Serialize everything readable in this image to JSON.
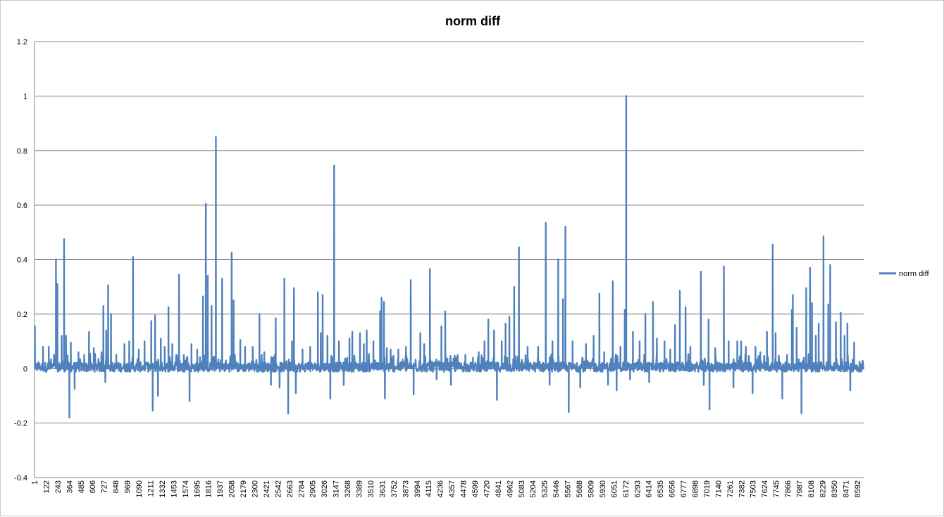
{
  "chart_data": {
    "type": "line",
    "title": "norm diff",
    "xlabel": "",
    "ylabel": "",
    "ylim": [
      -0.4,
      1.2
    ],
    "y_ticks": [
      "1.2",
      "1",
      "0.8",
      "0.6",
      "0.4",
      "0.2",
      "0",
      "-0.2",
      "-0.4"
    ],
    "x_range": [
      1,
      8660
    ],
    "x_ticks": [
      "1",
      "122",
      "243",
      "364",
      "485",
      "606",
      "727",
      "848",
      "969",
      "1090",
      "1211",
      "1332",
      "1453",
      "1574",
      "1695",
      "1816",
      "1937",
      "2058",
      "2179",
      "2300",
      "2421",
      "2542",
      "2663",
      "2784",
      "2905",
      "3026",
      "3147",
      "3268",
      "3389",
      "3510",
      "3631",
      "3752",
      "3873",
      "3994",
      "4115",
      "4236",
      "4357",
      "4478",
      "4599",
      "4720",
      "4841",
      "4962",
      "5083",
      "5204",
      "5325",
      "5446",
      "5567",
      "5688",
      "5809",
      "5930",
      "6051",
      "6172",
      "6293",
      "6414",
      "6535",
      "6656",
      "6777",
      "6898",
      "7019",
      "7140",
      "7261",
      "7382",
      "7503",
      "7624",
      "7745",
      "7866",
      "7987",
      "8108",
      "8229",
      "8350",
      "8471",
      "8592"
    ],
    "grid": true,
    "legend_position": "right",
    "series": [
      {
        "name": "norm diff",
        "color": "#4f81bd",
        "peaks": [
          [
            5,
            0.155
          ],
          [
            90,
            0.08
          ],
          [
            150,
            0.08
          ],
          [
            225,
            0.4
          ],
          [
            240,
            0.31
          ],
          [
            285,
            0.12
          ],
          [
            310,
            0.475
          ],
          [
            330,
            0.12
          ],
          [
            365,
            -0.18
          ],
          [
            380,
            0.095
          ],
          [
            420,
            -0.075
          ],
          [
            460,
            0.06
          ],
          [
            520,
            0.05
          ],
          [
            570,
            0.135
          ],
          [
            620,
            0.075
          ],
          [
            700,
            0.06
          ],
          [
            720,
            0.23
          ],
          [
            740,
            -0.05
          ],
          [
            750,
            0.14
          ],
          [
            770,
            0.305
          ],
          [
            800,
            0.2
          ],
          [
            855,
            0.05
          ],
          [
            940,
            0.09
          ],
          [
            990,
            0.1
          ],
          [
            1030,
            0.41
          ],
          [
            1090,
            0.07
          ],
          [
            1150,
            0.1
          ],
          [
            1220,
            0.175
          ],
          [
            1235,
            -0.155
          ],
          [
            1260,
            0.195
          ],
          [
            1290,
            -0.1
          ],
          [
            1320,
            0.11
          ],
          [
            1360,
            0.08
          ],
          [
            1400,
            0.225
          ],
          [
            1440,
            0.09
          ],
          [
            1510,
            0.345
          ],
          [
            1560,
            0.05
          ],
          [
            1620,
            -0.12
          ],
          [
            1640,
            0.09
          ],
          [
            1700,
            0.07
          ],
          [
            1760,
            0.265
          ],
          [
            1790,
            0.605
          ],
          [
            1810,
            0.34
          ],
          [
            1850,
            0.23
          ],
          [
            1895,
            0.85
          ],
          [
            1960,
            0.33
          ],
          [
            2000,
            0.03
          ],
          [
            2060,
            0.425
          ],
          [
            2080,
            0.25
          ],
          [
            2150,
            0.105
          ],
          [
            2200,
            0.08
          ],
          [
            2280,
            0.08
          ],
          [
            2350,
            0.2
          ],
          [
            2400,
            0.06
          ],
          [
            2470,
            -0.06
          ],
          [
            2520,
            0.185
          ],
          [
            2560,
            -0.07
          ],
          [
            2610,
            0.33
          ],
          [
            2650,
            -0.165
          ],
          [
            2690,
            0.1
          ],
          [
            2710,
            0.295
          ],
          [
            2730,
            -0.09
          ],
          [
            2800,
            0.07
          ],
          [
            2880,
            0.08
          ],
          [
            2960,
            0.28
          ],
          [
            2990,
            0.13
          ],
          [
            3010,
            0.27
          ],
          [
            3060,
            0.12
          ],
          [
            3090,
            -0.11
          ],
          [
            3130,
            0.745
          ],
          [
            3180,
            0.1
          ],
          [
            3230,
            -0.06
          ],
          [
            3290,
            0.11
          ],
          [
            3320,
            0.135
          ],
          [
            3400,
            0.13
          ],
          [
            3440,
            0.09
          ],
          [
            3470,
            0.14
          ],
          [
            3540,
            0.1
          ],
          [
            3610,
            0.21
          ],
          [
            3625,
            0.26
          ],
          [
            3650,
            0.245
          ],
          [
            3660,
            -0.11
          ],
          [
            3680,
            0.075
          ],
          [
            3720,
            0.07
          ],
          [
            3800,
            0.07
          ],
          [
            3880,
            0.08
          ],
          [
            3930,
            0.325
          ],
          [
            3960,
            -0.095
          ],
          [
            4030,
            0.13
          ],
          [
            4070,
            0.09
          ],
          [
            4130,
            0.365
          ],
          [
            4200,
            -0.04
          ],
          [
            4250,
            0.155
          ],
          [
            4290,
            0.21
          ],
          [
            4350,
            -0.06
          ],
          [
            4420,
            0.05
          ],
          [
            4500,
            0.05
          ],
          [
            4580,
            0.04
          ],
          [
            4640,
            0.06
          ],
          [
            4700,
            0.1
          ],
          [
            4740,
            0.18
          ],
          [
            4800,
            0.14
          ],
          [
            4830,
            -0.115
          ],
          [
            4880,
            0.1
          ],
          [
            4920,
            0.165
          ],
          [
            4960,
            0.19
          ],
          [
            5010,
            0.3
          ],
          [
            5060,
            0.445
          ],
          [
            5150,
            0.08
          ],
          [
            5260,
            0.08
          ],
          [
            5340,
            0.535
          ],
          [
            5380,
            -0.06
          ],
          [
            5410,
            0.1
          ],
          [
            5470,
            0.4
          ],
          [
            5520,
            0.255
          ],
          [
            5545,
            0.52
          ],
          [
            5580,
            -0.16
          ],
          [
            5620,
            0.1
          ],
          [
            5700,
            -0.07
          ],
          [
            5760,
            0.09
          ],
          [
            5840,
            0.12
          ],
          [
            5900,
            0.275
          ],
          [
            5950,
            0.06
          ],
          [
            5990,
            -0.06
          ],
          [
            6040,
            0.32
          ],
          [
            6080,
            -0.08
          ],
          [
            6120,
            0.08
          ],
          [
            6165,
            0.215
          ],
          [
            6180,
            1.0
          ],
          [
            6220,
            -0.04
          ],
          [
            6250,
            0.135
          ],
          [
            6320,
            0.1
          ],
          [
            6380,
            0.2
          ],
          [
            6420,
            -0.05
          ],
          [
            6460,
            0.245
          ],
          [
            6500,
            0.11
          ],
          [
            6580,
            0.1
          ],
          [
            6640,
            0.07
          ],
          [
            6690,
            0.16
          ],
          [
            6740,
            0.285
          ],
          [
            6800,
            0.225
          ],
          [
            6850,
            0.08
          ],
          [
            6960,
            0.355
          ],
          [
            6990,
            -0.06
          ],
          [
            7040,
            0.18
          ],
          [
            7050,
            -0.15
          ],
          [
            7110,
            0.075
          ],
          [
            7200,
            0.375
          ],
          [
            7250,
            0.1
          ],
          [
            7300,
            -0.07
          ],
          [
            7340,
            0.1
          ],
          [
            7380,
            0.1
          ],
          [
            7430,
            0.08
          ],
          [
            7500,
            -0.09
          ],
          [
            7530,
            0.08
          ],
          [
            7580,
            0.06
          ],
          [
            7650,
            0.135
          ],
          [
            7710,
            0.455
          ],
          [
            7740,
            0.13
          ],
          [
            7810,
            -0.11
          ],
          [
            7860,
            0.05
          ],
          [
            7910,
            0.215
          ],
          [
            7920,
            0.27
          ],
          [
            7960,
            0.15
          ],
          [
            8010,
            -0.165
          ],
          [
            8060,
            0.295
          ],
          [
            8100,
            0.37
          ],
          [
            8120,
            0.24
          ],
          [
            8160,
            0.12
          ],
          [
            8190,
            0.165
          ],
          [
            8240,
            0.485
          ],
          [
            8290,
            0.235
          ],
          [
            8310,
            0.38
          ],
          [
            8370,
            0.17
          ],
          [
            8420,
            0.205
          ],
          [
            8460,
            0.12
          ],
          [
            8490,
            0.165
          ],
          [
            8520,
            -0.08
          ],
          [
            8560,
            0.095
          ]
        ]
      }
    ]
  }
}
